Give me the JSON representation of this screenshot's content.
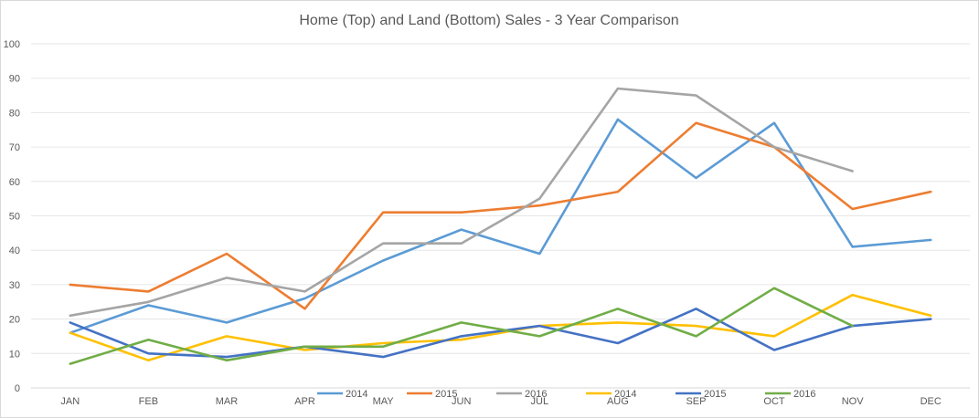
{
  "chart_data": {
    "type": "line",
    "title": "Home (Top) and Land (Bottom) Sales - 3 Year Comparison",
    "xlabel": "",
    "ylabel": "",
    "categories": [
      "JAN",
      "FEB",
      "MAR",
      "APR",
      "MAY",
      "JUN",
      "JUL",
      "AUG",
      "SEP",
      "OCT",
      "NOV",
      "DEC"
    ],
    "ylim": [
      0,
      100
    ],
    "yticks": [
      0,
      10,
      20,
      30,
      40,
      50,
      60,
      70,
      80,
      90,
      100
    ],
    "grid": true,
    "legend_position": "bottom",
    "series": [
      {
        "name": "2014",
        "color": "#5B9BD5",
        "values": [
          16,
          24,
          19,
          26,
          37,
          46,
          39,
          78,
          61,
          77,
          41,
          43
        ]
      },
      {
        "name": "2015",
        "color": "#ED7D31",
        "values": [
          30,
          28,
          39,
          23,
          51,
          51,
          53,
          57,
          77,
          70,
          52,
          57
        ]
      },
      {
        "name": "2016",
        "color": "#A5A5A5",
        "values": [
          21,
          25,
          32,
          28,
          42,
          42,
          55,
          87,
          85,
          70,
          63,
          null
        ]
      },
      {
        "name": "2014",
        "color": "#FFC000",
        "values": [
          16,
          8,
          15,
          11,
          13,
          14,
          18,
          19,
          18,
          15,
          27,
          21
        ]
      },
      {
        "name": "2015",
        "color": "#4472C4",
        "values": [
          19,
          10,
          9,
          12,
          9,
          15,
          18,
          13,
          23,
          11,
          18,
          20
        ]
      },
      {
        "name": "2016",
        "color": "#70AD47",
        "values": [
          7,
          14,
          8,
          12,
          12,
          19,
          15,
          23,
          15,
          29,
          18,
          null
        ]
      }
    ]
  }
}
